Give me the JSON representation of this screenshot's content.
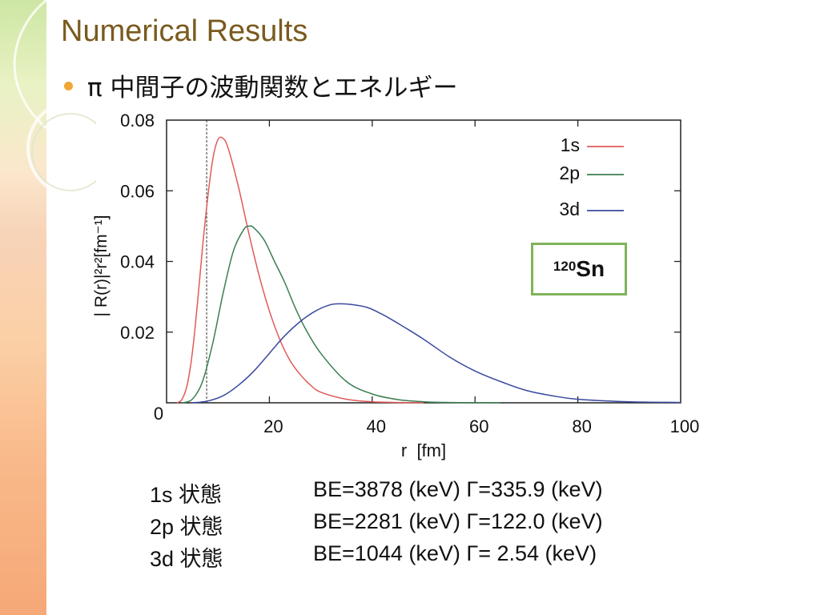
{
  "slide": {
    "title": "Numerical Results",
    "bullet_text": "π 中間子の波動関数とエネルギー"
  },
  "colors": {
    "title": "#7a5a1e",
    "bullet": "#f2a634",
    "box_border": "#7fb35a",
    "series_1s": "#e05a5a",
    "series_2p": "#3c7d52",
    "series_3d": "#3a4aa0"
  },
  "inset_label": {
    "mass_number": "120",
    "element": "Sn"
  },
  "results": [
    {
      "state": "1s 状態",
      "values": "BE=3878 (keV) Γ=335.9 (keV)"
    },
    {
      "state": "2p 状態",
      "values": "BE=2281 (keV) Γ=122.0 (keV)"
    },
    {
      "state": "3d 状態",
      "values": "BE=1044 (keV) Γ= 2.54 (keV)"
    }
  ],
  "chart_data": {
    "type": "line",
    "xlabel": "r  [fm]",
    "ylabel": "| R(r)|²r²[fm⁻¹]",
    "xlim": [
      0,
      100
    ],
    "ylim": [
      0,
      0.08
    ],
    "xticks": [
      0,
      20,
      40,
      60,
      80,
      100
    ],
    "yticks": [
      0.02,
      0.04,
      0.06,
      0.08
    ],
    "xtick_labels": [
      "0",
      "20",
      "40",
      "60",
      "80",
      "100"
    ],
    "ytick_labels": [
      "0.02",
      "0.04",
      "0.06",
      "0.08"
    ],
    "grid": false,
    "legend": "top-right",
    "reference_line_x": 7.8,
    "series": [
      {
        "name": "1s",
        "color": "#e05a5a",
        "x": [
          2,
          3,
          4,
          5,
          6,
          7,
          8,
          9,
          10,
          11,
          12,
          14,
          16,
          18,
          20,
          22,
          24,
          26,
          28,
          30,
          35,
          40,
          45,
          50
        ],
        "values": [
          0.0,
          0.001,
          0.005,
          0.014,
          0.028,
          0.044,
          0.058,
          0.069,
          0.0745,
          0.0748,
          0.072,
          0.061,
          0.048,
          0.036,
          0.026,
          0.018,
          0.012,
          0.008,
          0.005,
          0.003,
          0.001,
          0.0003,
          0.0001,
          0.0
        ]
      },
      {
        "name": "2p",
        "color": "#3c7d52",
        "x": [
          3,
          5,
          7,
          9,
          11,
          13,
          15,
          16,
          17,
          19,
          21,
          23,
          25,
          27,
          30,
          35,
          40,
          45,
          50,
          55,
          60,
          65
        ],
        "values": [
          0.0,
          0.001,
          0.006,
          0.017,
          0.031,
          0.043,
          0.049,
          0.05,
          0.0495,
          0.046,
          0.04,
          0.034,
          0.027,
          0.021,
          0.014,
          0.006,
          0.0025,
          0.0009,
          0.0003,
          0.0001,
          3e-05,
          0.0
        ]
      },
      {
        "name": "3d",
        "color": "#3a4aa0",
        "x": [
          5,
          8,
          11,
          14,
          17,
          20,
          23,
          26,
          29,
          32,
          34,
          36,
          39,
          42,
          45,
          50,
          55,
          60,
          65,
          70,
          75,
          80,
          90,
          100
        ],
        "values": [
          0.0,
          0.0005,
          0.002,
          0.005,
          0.009,
          0.014,
          0.019,
          0.023,
          0.026,
          0.0278,
          0.028,
          0.0278,
          0.027,
          0.025,
          0.0225,
          0.018,
          0.013,
          0.009,
          0.006,
          0.0035,
          0.002,
          0.001,
          0.0003,
          0.0001
        ]
      }
    ]
  }
}
